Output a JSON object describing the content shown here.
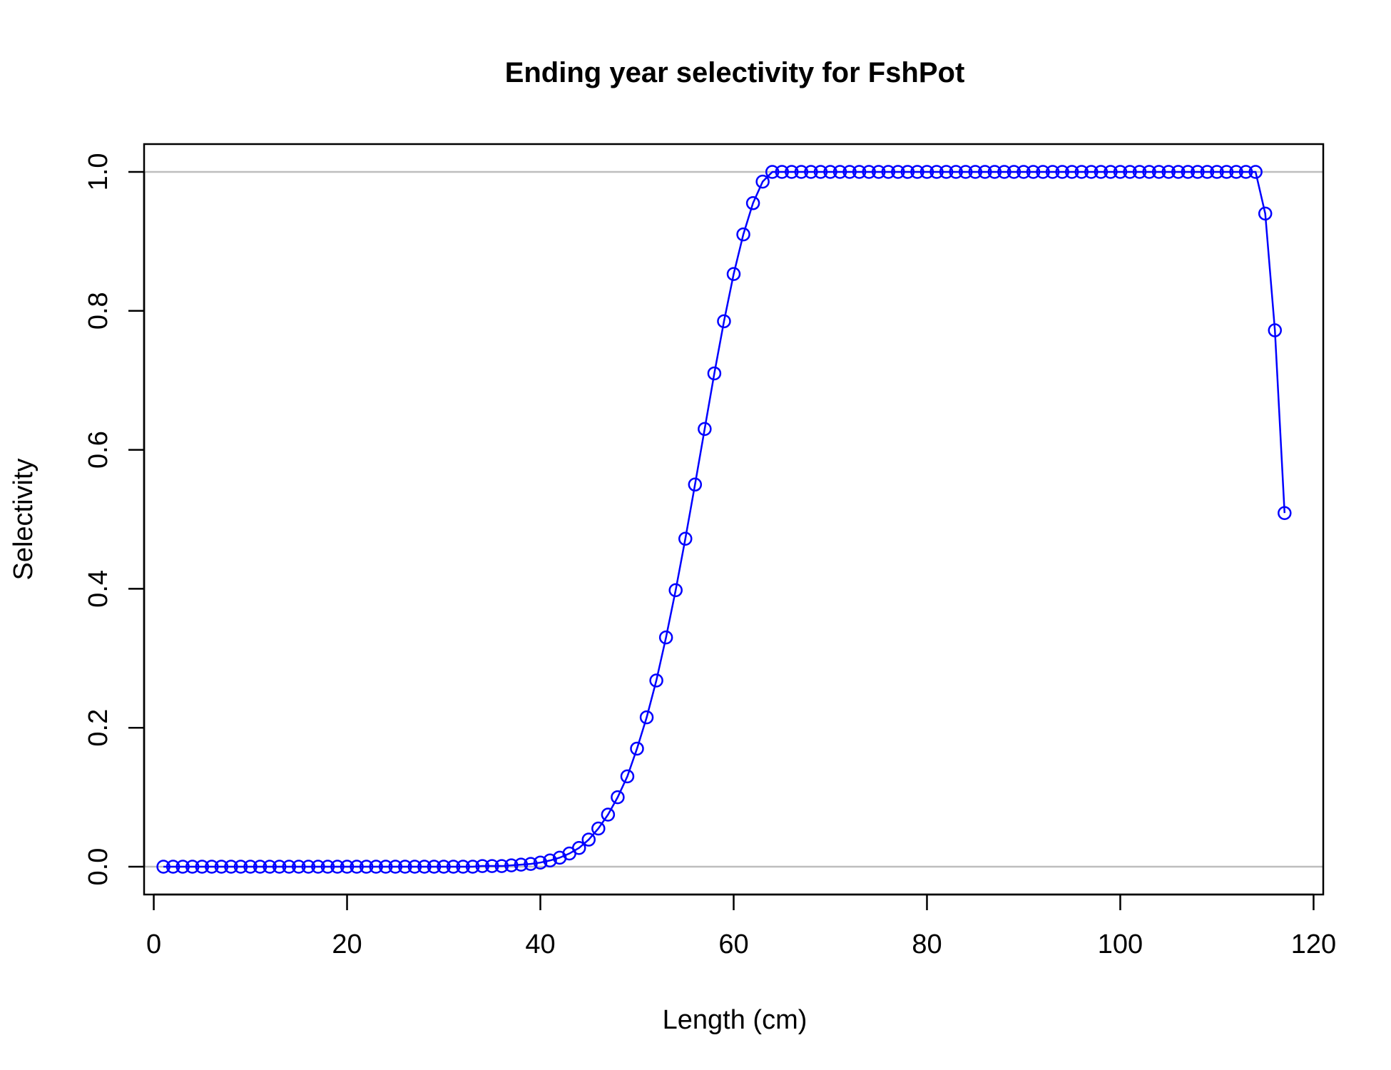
{
  "chart_data": {
    "type": "line",
    "title": "Ending year selectivity for FshPot",
    "xlabel": "Length (cm)",
    "ylabel": "Selectivity",
    "xlim": [
      -1,
      121
    ],
    "ylim": [
      -0.04,
      1.04
    ],
    "xticks": [
      "0",
      "20",
      "40",
      "60",
      "80",
      "100",
      "120"
    ],
    "yticks": [
      "0.0",
      "0.2",
      "0.4",
      "0.6",
      "0.8",
      "1.0"
    ],
    "reference_lines": [
      0,
      1
    ],
    "grid": false,
    "legend": "none",
    "colors": {
      "series": "#0000ff",
      "reference": "#bebebe",
      "axis": "#000000"
    },
    "series": [
      {
        "marker": "open-circle",
        "x": [
          1,
          2,
          3,
          4,
          5,
          6,
          7,
          8,
          9,
          10,
          11,
          12,
          13,
          14,
          15,
          16,
          17,
          18,
          19,
          20,
          21,
          22,
          23,
          24,
          25,
          26,
          27,
          28,
          29,
          30,
          31,
          32,
          33,
          34,
          35,
          36,
          37,
          38,
          39,
          40,
          41,
          42,
          43,
          44,
          45,
          46,
          47,
          48,
          49,
          50,
          51,
          52,
          53,
          54,
          55,
          56,
          57,
          58,
          59,
          60,
          61,
          62,
          63,
          64,
          65,
          66,
          67,
          68,
          69,
          70,
          71,
          72,
          73,
          74,
          75,
          76,
          77,
          78,
          79,
          80,
          81,
          82,
          83,
          84,
          85,
          86,
          87,
          88,
          89,
          90,
          91,
          92,
          93,
          94,
          95,
          96,
          97,
          98,
          99,
          100,
          101,
          102,
          103,
          104,
          105,
          106,
          107,
          108,
          109,
          110,
          111,
          112,
          113,
          114,
          115,
          116,
          117
        ],
        "values": [
          0,
          0,
          0,
          0,
          0,
          0,
          0,
          0,
          0,
          0,
          0,
          0,
          0,
          0,
          0,
          0,
          0,
          0,
          0,
          0,
          0,
          0,
          0,
          0,
          0,
          0,
          0,
          0,
          0,
          0,
          0,
          0,
          0,
          0.001,
          0.001,
          0.001,
          0.002,
          0.003,
          0.004,
          0.006,
          0.009,
          0.013,
          0.019,
          0.027,
          0.039,
          0.055,
          0.075,
          0.1,
          0.13,
          0.17,
          0.215,
          0.268,
          0.33,
          0.398,
          0.472,
          0.55,
          0.63,
          0.71,
          0.785,
          0.853,
          0.91,
          0.955,
          0.986,
          1,
          1,
          1,
          1,
          1,
          1,
          1,
          1,
          1,
          1,
          1,
          1,
          1,
          1,
          1,
          1,
          1,
          1,
          1,
          1,
          1,
          1,
          1,
          1,
          1,
          1,
          1,
          1,
          1,
          1,
          1,
          1,
          1,
          1,
          1,
          1,
          1,
          1,
          1,
          1,
          1,
          1,
          1,
          1,
          1,
          1,
          1,
          1,
          1,
          1,
          1,
          0.94,
          0.772,
          0.509
        ]
      }
    ]
  }
}
